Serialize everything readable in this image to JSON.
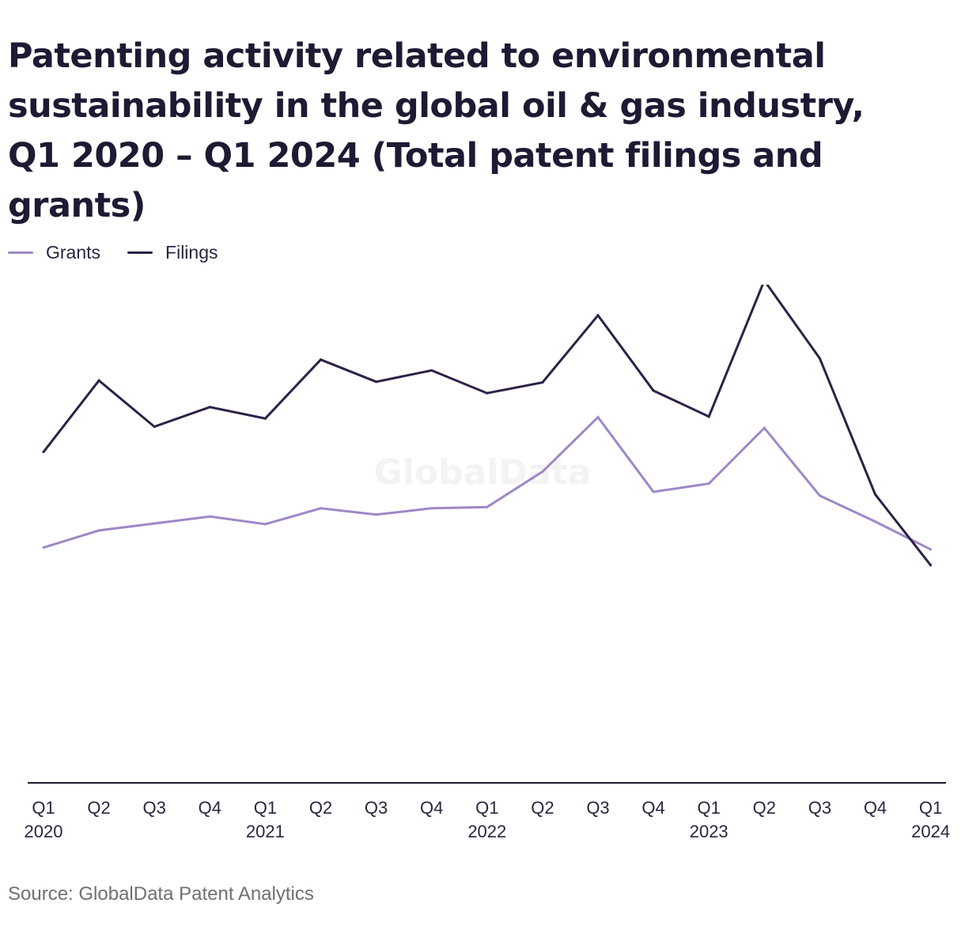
{
  "header": {
    "title": "Patenting activity related to environmental sustainability in the global oil & gas industry, Q1 2020 – Q1 2024 (Total patent filings and grants)"
  },
  "watermark": "GlobalData",
  "source": "Source: GlobalData Patent Analytics",
  "colors": {
    "grants": "#9e88c6",
    "filings": "#2e2148",
    "axis": "#1f1a33"
  },
  "chart_data": {
    "type": "line",
    "title": "Patenting activity related to environmental sustainability in the global oil & gas industry, Q1 2020 – Q1 2024 (Total patent filings and grants)",
    "xlabel": "",
    "ylabel": "",
    "grid": false,
    "legend": "top-left",
    "categories": [
      [
        "Q1",
        "2020"
      ],
      [
        "Q2",
        ""
      ],
      [
        "Q3",
        ""
      ],
      [
        "Q4",
        ""
      ],
      [
        "Q1",
        "2021"
      ],
      [
        "Q2",
        ""
      ],
      [
        "Q3",
        ""
      ],
      [
        "Q4",
        ""
      ],
      [
        "Q1",
        "2022"
      ],
      [
        "Q2",
        ""
      ],
      [
        "Q3",
        ""
      ],
      [
        "Q4",
        ""
      ],
      [
        "Q1",
        "2023"
      ],
      [
        "Q2",
        ""
      ],
      [
        "Q3",
        ""
      ],
      [
        "Q4",
        ""
      ],
      [
        "Q1",
        "2024"
      ]
    ],
    "ylim": [
      0,
      100
    ],
    "series": [
      {
        "name": "Grants",
        "color": "#9e88c6",
        "values": [
          37.2,
          39.9,
          41.0,
          42.1,
          40.9,
          43.4,
          42.4,
          43.4,
          43.6,
          49.2,
          57.8,
          46.0,
          47.3,
          56.1,
          45.4,
          41.3,
          36.9
        ]
      },
      {
        "name": "Filings",
        "color": "#2e2148",
        "values": [
          52.3,
          63.6,
          56.3,
          59.4,
          57.6,
          66.9,
          63.4,
          65.2,
          61.6,
          63.3,
          73.9,
          62.0,
          57.9,
          79.4,
          67.1,
          45.6,
          34.4
        ]
      }
    ]
  }
}
